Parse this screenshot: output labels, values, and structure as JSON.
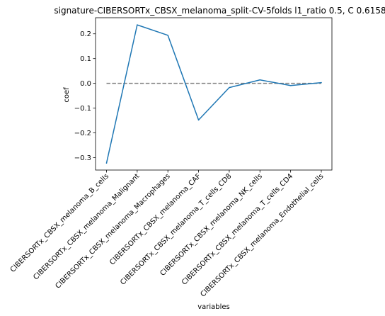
{
  "chart_data": {
    "type": "line",
    "title": "signature-CIBERSORTx_CBSX_melanoma_split-CV-5folds l1_ratio 0.5, C 0.6158",
    "xlabel": "variables",
    "ylabel": "coef",
    "categories": [
      "CIBERSORTx_CBSX_melanoma_B_cells",
      "CIBERSORTx_CBSX_melanoma_Malignant",
      "CIBERSORTx_CBSX_melanoma_Macrophages",
      "CIBERSORTx_CBSX_melanoma_CAF",
      "CIBERSORTx_CBSX_melanoma_T_cells_CD8",
      "CIBERSORTx_CBSX_melanoma_NK_cells",
      "CIBERSORTx_CBSX_melanoma_T_cells_CD4",
      "CIBERSORTx_CBSX_melanoma_Endothelial_cells"
    ],
    "series": [
      {
        "values": [
          -0.322,
          0.236,
          0.194,
          -0.148,
          -0.017,
          0.014,
          -0.009,
          0.003
        ]
      }
    ],
    "reference_line": {
      "y": 0.0,
      "style": "dashed",
      "color": "#808080"
    },
    "yticks": [
      -0.3,
      -0.2,
      -0.1,
      0.0,
      0.1,
      0.2
    ],
    "ytick_labels": [
      "−0.3",
      "−0.2",
      "−0.1",
      "0.0",
      "0.1",
      "0.2"
    ],
    "ylim": [
      -0.35,
      0.265
    ],
    "grid": false,
    "line_color": "#1f77b4"
  }
}
